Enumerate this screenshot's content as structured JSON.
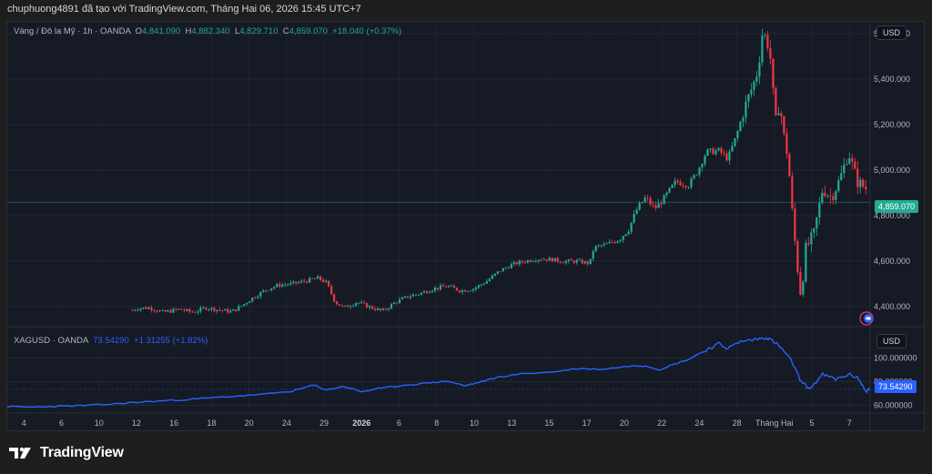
{
  "caption": "chuphuong4891 đã tạo với TradingView.com, Tháng Hai 06, 2026 15:45 UTC+7",
  "brand": {
    "name": "TradingView",
    "icon": "tradingview-logo-icon"
  },
  "colors": {
    "bg": "#161a25",
    "up": "#22ab94",
    "down": "#f23645",
    "line": "#2962ff",
    "grid": "#232733"
  },
  "main_pane": {
    "legend": {
      "symbol": "Vàng / Đô la Mỹ · 1h · OANDA",
      "open_label": "O",
      "open": "4,841.090",
      "high_label": "H",
      "high": "4,882.340",
      "low_label": "L",
      "low": "4,829.710",
      "close_label": "C",
      "close": "4,859.070",
      "change": "+18.040 (+0.37%)"
    },
    "currency": "USD",
    "last_price": "4,859.070",
    "y_ticks": [
      "5,600.000",
      "5,400.000",
      "5,200.000",
      "5,000.000",
      "4,800.000",
      "4,600.000",
      "4,400.000"
    ]
  },
  "sub_pane": {
    "legend": {
      "symbol": "XAGUSD · OANDA",
      "value": "73.54290",
      "change": "+1.31255 (+1.82%)"
    },
    "currency": "USD",
    "last_value": "73.54290",
    "y_ticks": [
      "100.000000",
      "80.000000",
      "60.000000"
    ]
  },
  "x_labels": [
    "4",
    "6",
    "10",
    "12",
    "16",
    "18",
    "20",
    "24",
    "29",
    "2026",
    "6",
    "8",
    "10",
    "13",
    "15",
    "17",
    "20",
    "22",
    "24",
    "28",
    "Tháng Hai",
    "5",
    "7"
  ],
  "chart_data": [
    {
      "type": "candlestick",
      "title": "Vàng / Đô la Mỹ · 1h · OANDA",
      "ylabel": "USD",
      "ylim": [
        4320,
        5620
      ],
      "last": 4859.07,
      "x_labels": [
        "4",
        "6",
        "10",
        "12",
        "16",
        "18",
        "20",
        "24",
        "29",
        "2026",
        "6",
        "8",
        "10",
        "13",
        "15",
        "17",
        "20",
        "22",
        "24",
        "28",
        "Tháng Hai",
        "5",
        "7"
      ],
      "close_path": [
        [
          0.0,
          4320
        ],
        [
          0.02,
          4330
        ],
        [
          0.04,
          4345
        ],
        [
          0.06,
          4360
        ],
        [
          0.08,
          4375
        ],
        [
          0.1,
          4390
        ],
        [
          0.12,
          4398
        ],
        [
          0.135,
          4370
        ],
        [
          0.15,
          4392
        ],
        [
          0.165,
          4395
        ],
        [
          0.18,
          4375
        ],
        [
          0.2,
          4388
        ],
        [
          0.215,
          4375
        ],
        [
          0.23,
          4395
        ],
        [
          0.245,
          4385
        ],
        [
          0.26,
          4378
        ],
        [
          0.27,
          4400
        ],
        [
          0.285,
          4440
        ],
        [
          0.3,
          4475
        ],
        [
          0.315,
          4495
        ],
        [
          0.33,
          4500
        ],
        [
          0.345,
          4512
        ],
        [
          0.36,
          4525
        ],
        [
          0.37,
          4505
        ],
        [
          0.38,
          4420
        ],
        [
          0.39,
          4395
        ],
        [
          0.405,
          4420
        ],
        [
          0.42,
          4398
        ],
        [
          0.435,
          4380
        ],
        [
          0.45,
          4420
        ],
        [
          0.465,
          4445
        ],
        [
          0.48,
          4460
        ],
        [
          0.495,
          4480
        ],
        [
          0.51,
          4490
        ],
        [
          0.525,
          4470
        ],
        [
          0.54,
          4478
        ],
        [
          0.555,
          4510
        ],
        [
          0.57,
          4555
        ],
        [
          0.585,
          4585
        ],
        [
          0.6,
          4600
        ],
        [
          0.615,
          4610
        ],
        [
          0.63,
          4608
        ],
        [
          0.645,
          4598
        ],
        [
          0.66,
          4600
        ],
        [
          0.675,
          4590
        ],
        [
          0.68,
          4660
        ],
        [
          0.695,
          4675
        ],
        [
          0.71,
          4700
        ],
        [
          0.72,
          4740
        ],
        [
          0.73,
          4830
        ],
        [
          0.74,
          4880
        ],
        [
          0.75,
          4830
        ],
        [
          0.76,
          4870
        ],
        [
          0.775,
          4950
        ],
        [
          0.79,
          4935
        ],
        [
          0.8,
          4995
        ],
        [
          0.81,
          5080
        ],
        [
          0.825,
          5085
        ],
        [
          0.835,
          5050
        ],
        [
          0.845,
          5150
        ],
        [
          0.855,
          5280
        ],
        [
          0.865,
          5380
        ],
        [
          0.87,
          5440
        ],
        [
          0.875,
          5600
        ],
        [
          0.88,
          5580
        ],
        [
          0.885,
          5480
        ],
        [
          0.89,
          5200
        ],
        [
          0.895,
          5300
        ],
        [
          0.9,
          5150
        ],
        [
          0.905,
          5050
        ],
        [
          0.91,
          4800
        ],
        [
          0.915,
          4600
        ],
        [
          0.92,
          4440
        ],
        [
          0.925,
          4650
        ],
        [
          0.935,
          4720
        ],
        [
          0.945,
          4920
        ],
        [
          0.955,
          4880
        ],
        [
          0.965,
          4960
        ],
        [
          0.975,
          5080
        ],
        [
          0.985,
          4950
        ],
        [
          0.995,
          4920
        ],
        [
          1.0,
          4859
        ]
      ]
    },
    {
      "type": "line",
      "title": "XAGUSD · OANDA",
      "ylabel": "USD",
      "ylim": [
        55,
        125
      ],
      "last": 73.5429,
      "series": [
        {
          "name": "XAGUSD",
          "points": [
            [
              0.0,
              58.8
            ],
            [
              0.03,
              58.5
            ],
            [
              0.06,
              59.2
            ],
            [
              0.09,
              59.8
            ],
            [
              0.12,
              61.0
            ],
            [
              0.15,
              62.5
            ],
            [
              0.18,
              63.8
            ],
            [
              0.21,
              65.0
            ],
            [
              0.24,
              66.5
            ],
            [
              0.27,
              68.0
            ],
            [
              0.3,
              69.5
            ],
            [
              0.33,
              72.0
            ],
            [
              0.355,
              77.0
            ],
            [
              0.37,
              73.0
            ],
            [
              0.39,
              76.0
            ],
            [
              0.41,
              71.5
            ],
            [
              0.43,
              74.0
            ],
            [
              0.46,
              77.0
            ],
            [
              0.49,
              79.0
            ],
            [
              0.51,
              80.5
            ],
            [
              0.53,
              76.5
            ],
            [
              0.55,
              80.0
            ],
            [
              0.57,
              84.0
            ],
            [
              0.6,
              87.0
            ],
            [
              0.63,
              88.0
            ],
            [
              0.66,
              91.0
            ],
            [
              0.69,
              90.5
            ],
            [
              0.72,
              93.0
            ],
            [
              0.74,
              93.5
            ],
            [
              0.755,
              90.0
            ],
            [
              0.77,
              94.0
            ],
            [
              0.79,
              99.0
            ],
            [
              0.81,
              107.0
            ],
            [
              0.825,
              112.0
            ],
            [
              0.835,
              108.0
            ],
            [
              0.85,
              114.0
            ],
            [
              0.87,
              116.0
            ],
            [
              0.88,
              117.5
            ],
            [
              0.89,
              113.0
            ],
            [
              0.9,
              106.0
            ],
            [
              0.91,
              96.0
            ],
            [
              0.92,
              80.0
            ],
            [
              0.93,
              74.0
            ],
            [
              0.945,
              86.0
            ],
            [
              0.96,
              82.0
            ],
            [
              0.975,
              86.0
            ],
            [
              0.985,
              84.0
            ],
            [
              0.995,
              72.0
            ],
            [
              1.0,
              73.5
            ]
          ]
        }
      ],
      "y_ticks": [
        100,
        80,
        60
      ]
    }
  ]
}
